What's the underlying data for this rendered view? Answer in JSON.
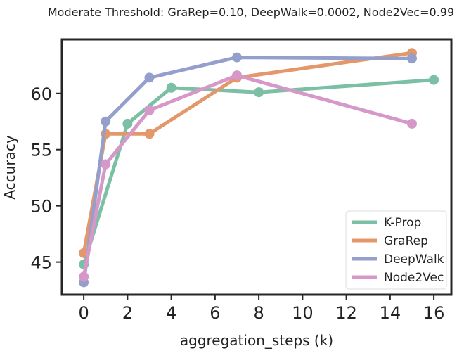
{
  "chart_data": {
    "type": "line",
    "title": "Moderate Threshold: GraRep=0.10, DeepWalk=0.0002, Node2Vec=0.99",
    "xlabel": "aggregation_steps (k)",
    "ylabel": "Accuracy",
    "xlim": [
      -1.0,
      16.8
    ],
    "ylim": [
      42.1,
      64.8
    ],
    "xticks": [
      0,
      2,
      4,
      6,
      8,
      10,
      12,
      14,
      16
    ],
    "yticks": [
      45,
      50,
      55,
      60
    ],
    "grid": false,
    "legend_position": "lower-right",
    "series": [
      {
        "name": "K-Prop",
        "color": "#7bbfa5",
        "x": [
          0,
          2,
          4,
          8,
          16
        ],
        "y": [
          44.8,
          57.3,
          60.5,
          60.1,
          61.2
        ]
      },
      {
        "name": "GraRep",
        "color": "#e4976a",
        "x": [
          0,
          1,
          3,
          7,
          15
        ],
        "y": [
          45.8,
          56.4,
          56.4,
          61.4,
          63.6
        ]
      },
      {
        "name": "DeepWalk",
        "color": "#959fcc",
        "x": [
          0,
          1,
          3,
          7,
          15
        ],
        "y": [
          43.2,
          57.5,
          61.4,
          63.2,
          63.1
        ]
      },
      {
        "name": "Node2Vec",
        "color": "#d598c8",
        "x": [
          0,
          1,
          3,
          7,
          15
        ],
        "y": [
          43.7,
          53.7,
          58.5,
          61.6,
          57.3
        ]
      }
    ]
  }
}
